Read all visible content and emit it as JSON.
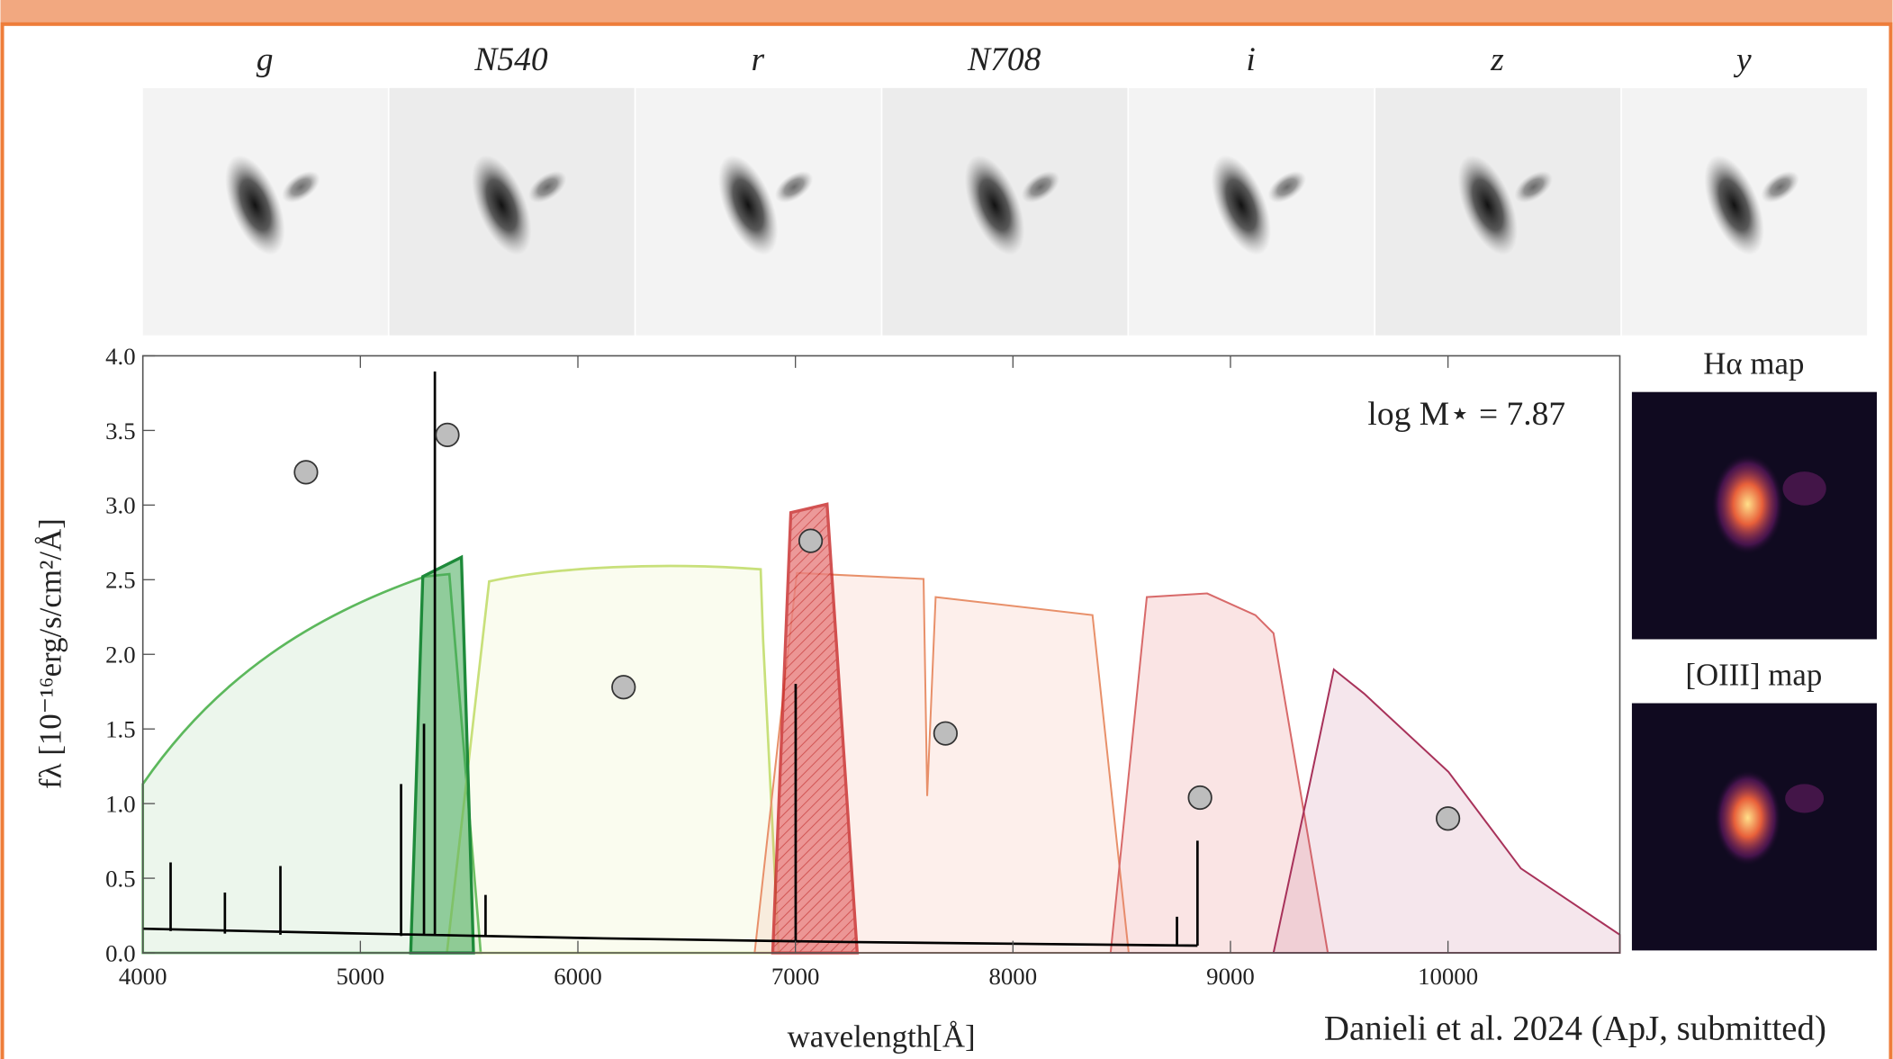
{
  "cutouts": [
    "g",
    "N540",
    "r",
    "N708",
    "i",
    "z",
    "y"
  ],
  "maps": [
    "Hα map",
    "[OIII] map"
  ],
  "citation": "Danieli et al. 2024 (ApJ, submitted)",
  "chart_data": {
    "type": "scatter",
    "xlabel": "wavelength[Å]",
    "ylabel": "fλ [10⁻¹⁶erg/s/cm²/Å]",
    "annotation": "log M⋆ = 7.87",
    "x": [
      4750,
      5400,
      6210,
      7070,
      7690,
      8860,
      10000
    ],
    "values": [
      3.22,
      3.47,
      1.78,
      2.76,
      1.47,
      1.04,
      0.9
    ],
    "color": "#bdbdbd",
    "xlim": [
      4000,
      10790
    ],
    "ylim": [
      0,
      4.0
    ],
    "xticks": [
      4000,
      5000,
      6000,
      7000,
      8000,
      9000,
      10000
    ],
    "yticks": [
      {
        "value": 0,
        "label": "0.0"
      },
      0.5,
      {
        "value": 1,
        "label": "1.0"
      },
      1.5,
      {
        "value": 2,
        "label": "2.0"
      },
      2.5,
      {
        "value": 3,
        "label": "3.0"
      },
      3.5,
      {
        "value": 4,
        "label": "4.0"
      }
    ]
  }
}
